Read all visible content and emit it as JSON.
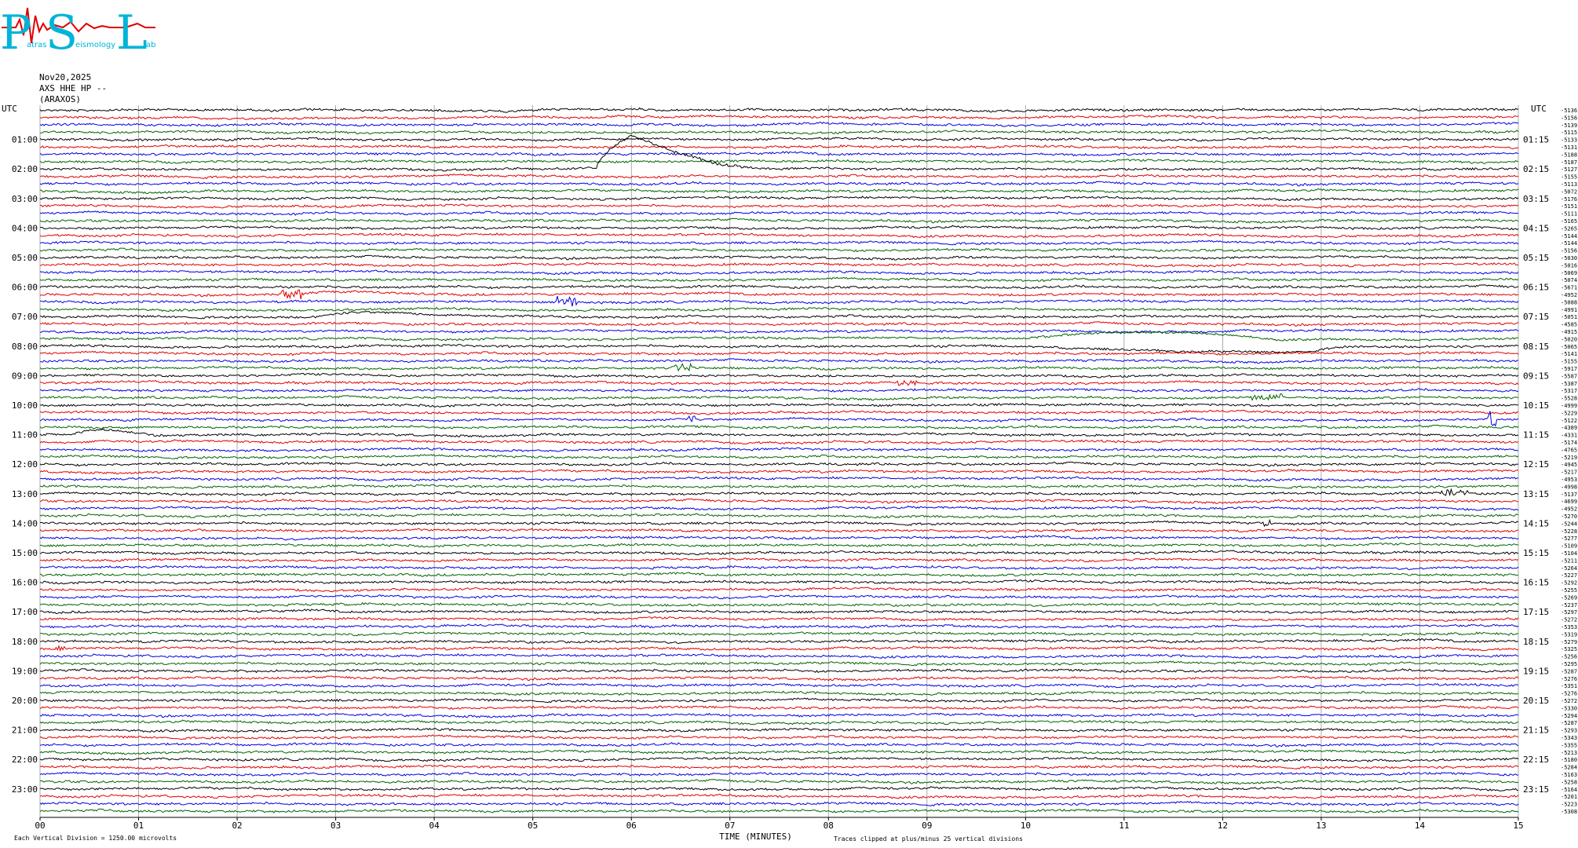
{
  "logo": {
    "letters": [
      "P",
      "S",
      "L"
    ],
    "words": [
      "atras",
      "eismology",
      "ab"
    ]
  },
  "header": {
    "date": "Nov20,2025",
    "channel": "AXS HHE HP --",
    "station": "(ARAXOS)"
  },
  "footer": {
    "scale_note": "Each Vertical Division = 1250.00 microvolts",
    "clip_note": "Traces clipped at plus/minus 25 vertical divisions"
  },
  "colors": {
    "line1": "#000000",
    "line2": "#e00000",
    "line3": "#0000e0",
    "line4": "#006400",
    "grid": "#888888"
  },
  "chart_data": {
    "type": "line",
    "title": "",
    "xlabel": "TIME (MINUTES)",
    "ylabel": "",
    "x_ticks": [
      "00",
      "01",
      "02",
      "03",
      "04",
      "05",
      "06",
      "07",
      "08",
      "09",
      "10",
      "11",
      "12",
      "13",
      "14",
      "15"
    ],
    "xlim": [
      0,
      15
    ],
    "left_axis_title": "UTC",
    "right_axis_title": "UTC",
    "left_hour_labels": [
      "01:00",
      "02:00",
      "03:00",
      "04:00",
      "05:00",
      "06:00",
      "07:00",
      "08:00",
      "09:00",
      "10:00",
      "11:00",
      "12:00",
      "13:00",
      "14:00",
      "15:00",
      "16:00",
      "17:00",
      "18:00",
      "19:00",
      "20:00",
      "21:00",
      "22:00",
      "23:00"
    ],
    "right_hour_labels": [
      "01:15",
      "02:15",
      "03:15",
      "04:15",
      "05:15",
      "06:15",
      "07:15",
      "08:15",
      "09:15",
      "10:15",
      "11:15",
      "12:15",
      "13:15",
      "14:15",
      "15:15",
      "16:15",
      "17:15",
      "18:15",
      "19:15",
      "20:15",
      "21:15",
      "22:15",
      "23:15"
    ],
    "trace_offsets": [
      "-5136",
      "-5156",
      "-5139",
      "-5115",
      "-5133",
      "-5131",
      "-5188",
      "-5187",
      "-5127",
      "-5155",
      "-5113",
      "-5072",
      "-5176",
      "-5151",
      "-5111",
      "-5165",
      "-5265",
      "-5144",
      "-5144",
      "-5156",
      "-5030",
      "-5016",
      "-5069",
      "-5074",
      "-5671",
      "-4952",
      "-5088",
      "-4991",
      "-5051",
      "-4585",
      "-4915",
      "-5020",
      "-5065",
      "-5141",
      "-5155",
      "-5917",
      "-5587",
      "-5387",
      "-5317",
      "-5528",
      "-4999",
      "-5229",
      "-5122",
      "-4389",
      "-4331",
      "-5174",
      "-4765",
      "-5219",
      "-4945",
      "-5217",
      "-4953",
      "-4998",
      "-5137",
      "-4699",
      "-4952",
      "-5270",
      "-5244",
      "-5228",
      "-5277",
      "-5109",
      "-5104",
      "-5211",
      "-5264",
      "-5227",
      "-5292",
      "-5255",
      "-5269",
      "-5237",
      "-5297",
      "-5272",
      "-5353",
      "-5319",
      "-5279",
      "-5325",
      "-5256",
      "-5295",
      "-5287",
      "-5276",
      "-5351",
      "-5276",
      "-5272",
      "-5330",
      "-5294",
      "-5287",
      "-5293",
      "-5343",
      "-5355",
      "-5213",
      "-5180",
      "-5284",
      "-5163",
      "-5258",
      "-5164",
      "-5201",
      "-5223",
      "-5308"
    ],
    "series": [
      {
        "color": "black",
        "events": [
          {
            "trace": 8,
            "kind": "pulse",
            "t0": 5.65,
            "t1": 7.3,
            "peak": 6.0,
            "amp": -43
          },
          {
            "trace": 24,
            "kind": "step",
            "t0": 0.0,
            "t1": 15.0,
            "amp": 0
          },
          {
            "trace": 28,
            "kind": "bump",
            "t0": 2.8,
            "t1": 4.1,
            "peak": 3.25,
            "amp": -6
          },
          {
            "trace": 32,
            "kind": "bump",
            "t0": 10.0,
            "t1": 13.2,
            "peak": 12.5,
            "amp": 8
          },
          {
            "trace": 44,
            "kind": "bump",
            "t0": 0.3,
            "t1": 1.2,
            "peak": 0.6,
            "amp": -6
          },
          {
            "trace": 52,
            "kind": "burst",
            "t0": 14.2,
            "t1": 14.5,
            "amp": 3
          },
          {
            "trace": 56,
            "kind": "burst",
            "t0": 12.4,
            "t1": 12.5,
            "amp": 4
          }
        ]
      },
      {
        "color": "red",
        "events": [
          {
            "trace": 25,
            "kind": "burst",
            "t0": 2.45,
            "t1": 2.65,
            "amp": 6
          },
          {
            "trace": 25,
            "kind": "bump",
            "t0": 2.6,
            "t1": 4.0,
            "peak": 3.0,
            "amp": -3
          },
          {
            "trace": 37,
            "kind": "burst",
            "t0": 8.7,
            "t1": 8.9,
            "amp": 4
          },
          {
            "trace": 73,
            "kind": "burst",
            "t0": 0.1,
            "t1": 0.25,
            "amp": 3
          }
        ]
      },
      {
        "color": "blue",
        "events": [
          {
            "trace": 26,
            "kind": "burst",
            "t0": 5.25,
            "t1": 5.45,
            "amp": 7
          },
          {
            "trace": 42,
            "kind": "burst",
            "t0": 6.55,
            "t1": 6.65,
            "amp": 4
          },
          {
            "trace": 42,
            "kind": "burst",
            "t0": 14.7,
            "t1": 14.78,
            "amp": 12
          }
        ]
      },
      {
        "color": "green",
        "events": [
          {
            "trace": 31,
            "kind": "bump",
            "t0": 10.0,
            "t1": 12.5,
            "peak": 11.4,
            "amp": -8
          },
          {
            "trace": 35,
            "kind": "burst",
            "t0": 6.4,
            "t1": 6.6,
            "amp": 4
          },
          {
            "trace": 39,
            "kind": "burst",
            "t0": 12.3,
            "t1": 12.6,
            "amp": 4
          }
        ]
      }
    ]
  }
}
